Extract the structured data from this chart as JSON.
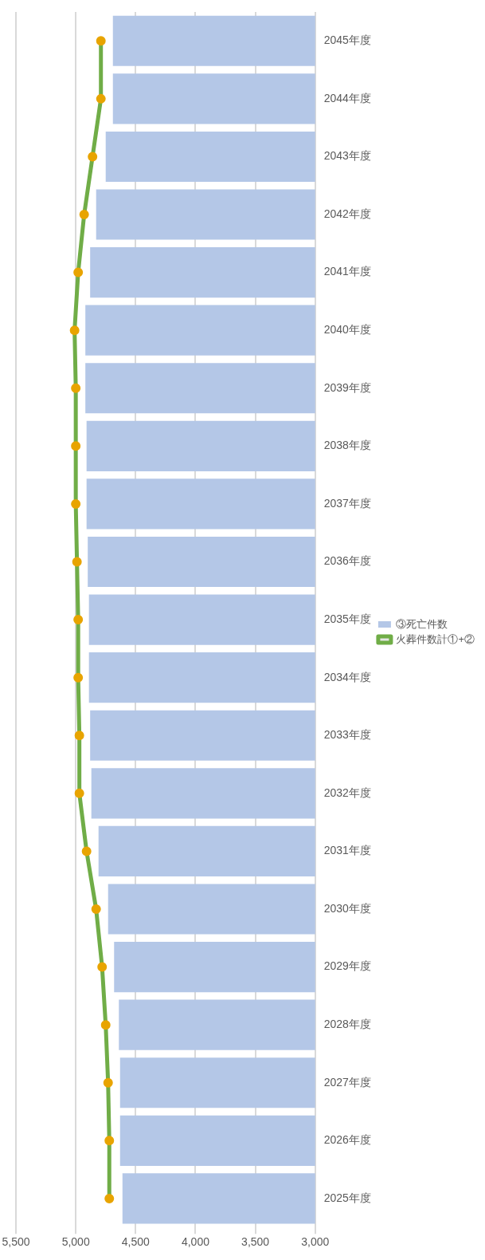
{
  "chart_data": {
    "type": "bar",
    "orientation": "horizontal",
    "categories": [
      "2045年度",
      "2044年度",
      "2043年度",
      "2042年度",
      "2041年度",
      "2040年度",
      "2039年度",
      "2038年度",
      "2037年度",
      "2036年度",
      "2035年度",
      "2034年度",
      "2033年度",
      "2032年度",
      "2031年度",
      "2030年度",
      "2029年度",
      "2028年度",
      "2027年度",
      "2026年度",
      "2025年度"
    ],
    "series": [
      {
        "name": "③死亡件数",
        "color": "#b4c7e7",
        "values": [
          4690,
          4690,
          4750,
          4830,
          4880,
          4920,
          4920,
          4910,
          4910,
          4900,
          4890,
          4890,
          4880,
          4870,
          4810,
          4730,
          4680,
          4640,
          4630,
          4630,
          4610
        ]
      },
      {
        "name": "火葬件数計①+②",
        "type": "line",
        "color": "#70ad47",
        "marker": "circle",
        "values": [
          4790,
          4790,
          4860,
          4930,
          4980,
          5010,
          5000,
          5000,
          5000,
          4990,
          4980,
          4980,
          4970,
          4970,
          4910,
          4830,
          4780,
          4750,
          4730,
          4720,
          4720
        ]
      }
    ],
    "xlim": [
      5500,
      3000
    ],
    "xticks": [
      {
        "value": 3000,
        "label": "3,000"
      },
      {
        "value": 3500,
        "label": "3,500"
      },
      {
        "value": 4000,
        "label": "4,000"
      },
      {
        "value": 4500,
        "label": "4,500"
      },
      {
        "value": 5000,
        "label": "5,000"
      },
      {
        "value": 5500,
        "label": "5,500"
      }
    ],
    "grid": "x",
    "legend": "right"
  }
}
